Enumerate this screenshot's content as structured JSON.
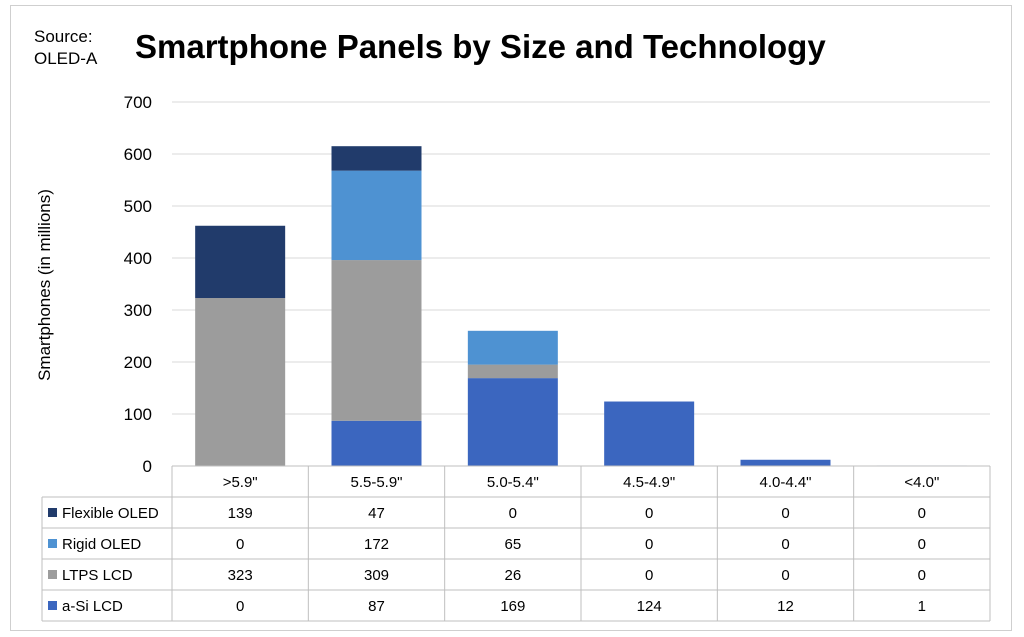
{
  "source": [
    "Source:",
    "OLED-A"
  ],
  "chart_data": {
    "type": "bar",
    "stacked": true,
    "title": "Smartphone Panels by Size and Technology",
    "xlabel": "",
    "ylabel": "Smartphones (in millions)",
    "ylim": [
      0,
      700
    ],
    "yticks": [
      0,
      100,
      200,
      300,
      400,
      500,
      600,
      700
    ],
    "grid": true,
    "legend": "data-table",
    "categories": [
      ">5.9\"",
      "5.5-5.9\"",
      "5.0-5.4\"",
      "4.5-4.9\"",
      "4.0-4.4\"",
      "<4.0\""
    ],
    "series": [
      {
        "name": "Flexible OLED",
        "color": "#213b6b",
        "values": [
          139,
          47,
          0,
          0,
          0,
          0
        ]
      },
      {
        "name": "Rigid OLED",
        "color": "#4e92d2",
        "values": [
          0,
          172,
          65,
          0,
          0,
          0
        ]
      },
      {
        "name": "LTPS LCD",
        "color": "#9c9c9c",
        "values": [
          323,
          309,
          26,
          0,
          0,
          0
        ]
      },
      {
        "name": "a-Si LCD",
        "color": "#3b66bf",
        "values": [
          0,
          87,
          169,
          124,
          12,
          1
        ]
      }
    ]
  }
}
